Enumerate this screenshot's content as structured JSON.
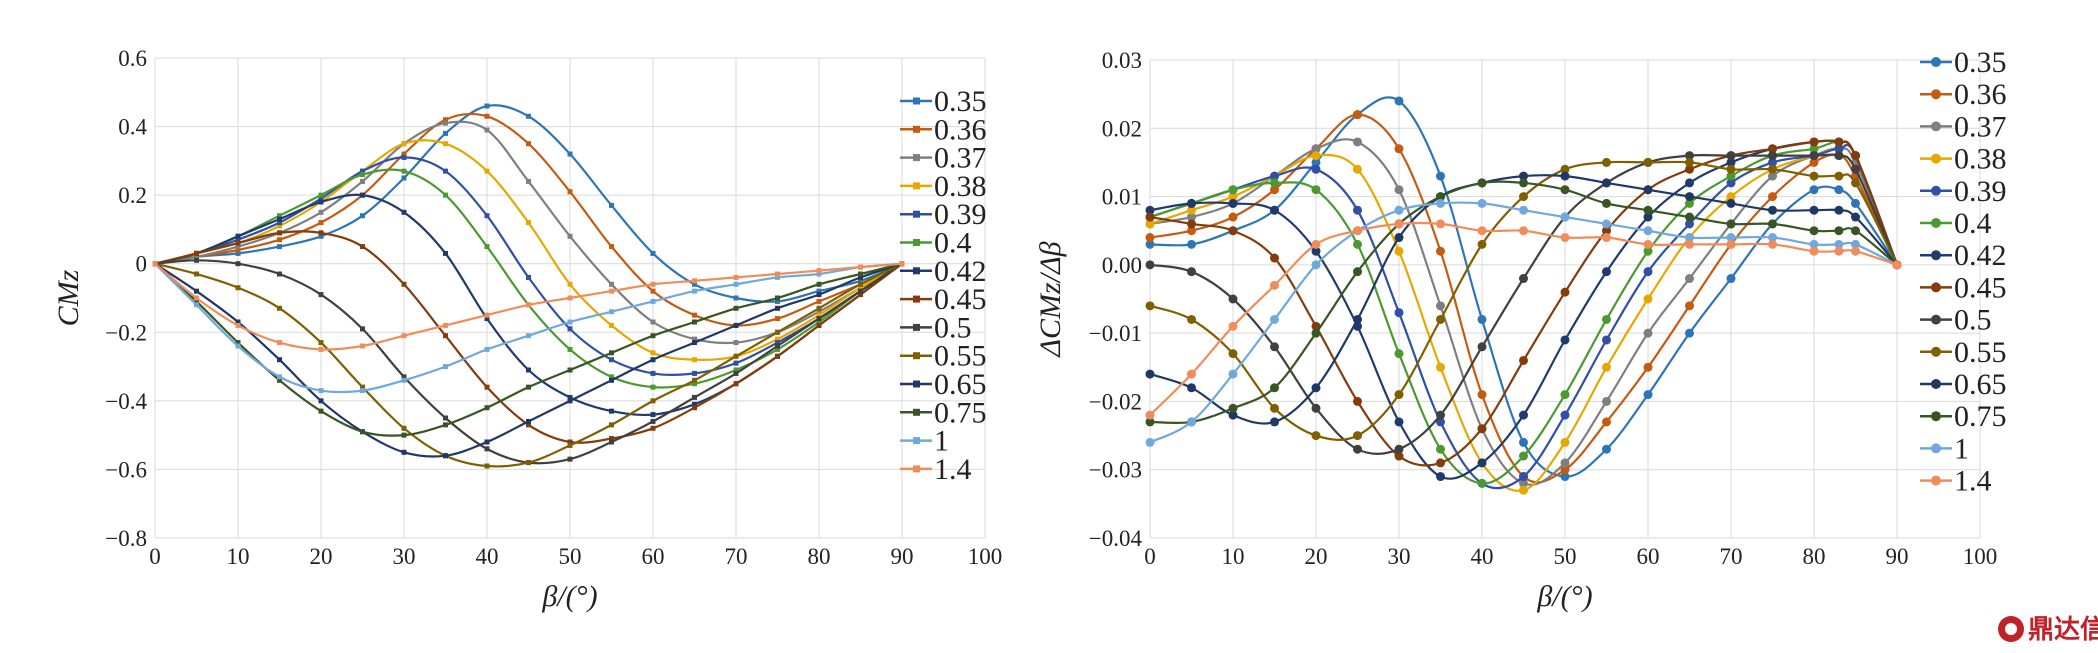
{
  "colors": [
    "#2e75b6",
    "#c55a11",
    "#7f7f7f",
    "#e6a800",
    "#2f4fa8",
    "#4a9a2f",
    "#1f3b6e",
    "#843c0c",
    "#404040",
    "#7f6000",
    "#203864",
    "#375623",
    "#6fa8dc",
    "#f08c5a"
  ],
  "watermark": "鼎达信",
  "caption": "",
  "chart_data": [
    {
      "type": "line",
      "xlabel": "β/(°)",
      "ylabel": "CMz",
      "xlim": [
        0,
        100
      ],
      "ylim": [
        -0.8,
        0.6
      ],
      "xticks": [
        0,
        10,
        20,
        30,
        40,
        50,
        60,
        70,
        80,
        90,
        100
      ],
      "yticks": [
        -0.8,
        -0.6,
        -0.4,
        -0.2,
        0,
        0.2,
        0.4,
        0.6
      ],
      "ytick_labels": [
        "−0.8",
        "−0.6",
        "−0.4",
        "−0.2",
        "0",
        "0.2",
        "0.4",
        "0.6"
      ],
      "grid": true,
      "legend_position": "right",
      "x": [
        0,
        5,
        10,
        15,
        20,
        25,
        30,
        35,
        40,
        45,
        50,
        55,
        60,
        65,
        70,
        75,
        80,
        85,
        90
      ],
      "series": [
        {
          "name": "0.35",
          "values": [
            0,
            0.02,
            0.03,
            0.05,
            0.08,
            0.14,
            0.25,
            0.38,
            0.46,
            0.43,
            0.32,
            0.17,
            0.03,
            -0.06,
            -0.1,
            -0.11,
            -0.08,
            -0.05,
            0
          ]
        },
        {
          "name": "0.36",
          "values": [
            0,
            0.02,
            0.04,
            0.07,
            0.12,
            0.2,
            0.32,
            0.42,
            0.43,
            0.35,
            0.21,
            0.05,
            -0.08,
            -0.15,
            -0.18,
            -0.16,
            -0.11,
            -0.06,
            0
          ]
        },
        {
          "name": "0.37",
          "values": [
            0,
            0.02,
            0.05,
            0.09,
            0.15,
            0.24,
            0.35,
            0.41,
            0.39,
            0.24,
            0.08,
            -0.06,
            -0.17,
            -0.22,
            -0.23,
            -0.2,
            -0.14,
            -0.07,
            0
          ]
        },
        {
          "name": "0.38",
          "values": [
            0,
            0.03,
            0.06,
            0.11,
            0.18,
            0.27,
            0.35,
            0.35,
            0.27,
            0.12,
            -0.06,
            -0.18,
            -0.26,
            -0.28,
            -0.27,
            -0.22,
            -0.15,
            -0.07,
            0
          ]
        },
        {
          "name": "0.39",
          "values": [
            0,
            0.03,
            0.07,
            0.12,
            0.19,
            0.27,
            0.31,
            0.27,
            0.14,
            -0.04,
            -0.19,
            -0.28,
            -0.32,
            -0.32,
            -0.29,
            -0.23,
            -0.16,
            -0.08,
            0
          ]
        },
        {
          "name": "0.4",
          "values": [
            0,
            0.03,
            0.08,
            0.14,
            0.2,
            0.26,
            0.27,
            0.2,
            0.05,
            -0.12,
            -0.25,
            -0.33,
            -0.36,
            -0.35,
            -0.31,
            -0.25,
            -0.17,
            -0.08,
            0
          ]
        },
        {
          "name": "0.42",
          "values": [
            0,
            0.03,
            0.08,
            0.13,
            0.18,
            0.2,
            0.15,
            0.03,
            -0.16,
            -0.31,
            -0.39,
            -0.43,
            -0.44,
            -0.41,
            -0.35,
            -0.27,
            -0.18,
            -0.09,
            0
          ]
        },
        {
          "name": "0.45",
          "values": [
            0,
            0.03,
            0.06,
            0.09,
            0.09,
            0.05,
            -0.06,
            -0.21,
            -0.36,
            -0.47,
            -0.52,
            -0.51,
            -0.48,
            -0.42,
            -0.35,
            -0.27,
            -0.18,
            -0.09,
            0
          ]
        },
        {
          "name": "0.5",
          "values": [
            0,
            0.01,
            0.0,
            -0.03,
            -0.09,
            -0.19,
            -0.33,
            -0.45,
            -0.54,
            -0.58,
            -0.57,
            -0.52,
            -0.46,
            -0.39,
            -0.32,
            -0.24,
            -0.16,
            -0.08,
            0
          ]
        },
        {
          "name": "0.55",
          "values": [
            0,
            -0.03,
            -0.07,
            -0.13,
            -0.23,
            -0.36,
            -0.48,
            -0.56,
            -0.59,
            -0.58,
            -0.53,
            -0.47,
            -0.4,
            -0.34,
            -0.27,
            -0.2,
            -0.13,
            -0.06,
            0
          ]
        },
        {
          "name": "0.65",
          "values": [
            0,
            -0.08,
            -0.17,
            -0.28,
            -0.4,
            -0.49,
            -0.55,
            -0.56,
            -0.52,
            -0.46,
            -0.4,
            -0.34,
            -0.28,
            -0.23,
            -0.18,
            -0.13,
            -0.09,
            -0.04,
            0
          ]
        },
        {
          "name": "0.75",
          "values": [
            0,
            -0.11,
            -0.23,
            -0.34,
            -0.43,
            -0.49,
            -0.5,
            -0.47,
            -0.42,
            -0.36,
            -0.31,
            -0.26,
            -0.21,
            -0.17,
            -0.13,
            -0.1,
            -0.06,
            -0.03,
            0
          ]
        },
        {
          "name": "1",
          "values": [
            0,
            -0.12,
            -0.24,
            -0.33,
            -0.37,
            -0.37,
            -0.34,
            -0.3,
            -0.25,
            -0.21,
            -0.17,
            -0.14,
            -0.11,
            -0.08,
            -0.06,
            -0.04,
            -0.03,
            -0.01,
            0
          ]
        },
        {
          "name": "1.4",
          "values": [
            0,
            -0.1,
            -0.18,
            -0.23,
            -0.25,
            -0.24,
            -0.21,
            -0.18,
            -0.15,
            -0.12,
            -0.1,
            -0.08,
            -0.06,
            -0.05,
            -0.04,
            -0.03,
            -0.02,
            -0.01,
            0
          ]
        }
      ]
    },
    {
      "type": "line",
      "xlabel": "β/(°)",
      "ylabel": "ΔCMz/Δβ",
      "xlim": [
        0,
        100
      ],
      "ylim": [
        -0.04,
        0.03
      ],
      "xticks": [
        0,
        10,
        20,
        30,
        40,
        50,
        60,
        70,
        80,
        90,
        100
      ],
      "yticks": [
        -0.04,
        -0.03,
        -0.02,
        -0.01,
        0,
        0.01,
        0.02,
        0.03
      ],
      "ytick_labels": [
        "−0.04",
        "−0.03",
        "−0.02",
        "−0.01",
        "0.00",
        "0.01",
        "0.02",
        "0.03"
      ],
      "grid": true,
      "legend_position": "right",
      "x": [
        0,
        5,
        10,
        15,
        20,
        25,
        30,
        35,
        40,
        45,
        50,
        55,
        60,
        65,
        70,
        75,
        80,
        83,
        85,
        90
      ],
      "series": [
        {
          "name": "0.35",
          "values": [
            0.003,
            0.003,
            0.005,
            0.008,
            0.015,
            0.022,
            0.024,
            0.013,
            -0.008,
            -0.026,
            -0.031,
            -0.027,
            -0.019,
            -0.01,
            -0.002,
            0.006,
            0.011,
            0.011,
            0.009,
            0
          ]
        },
        {
          "name": "0.36",
          "values": [
            0.004,
            0.005,
            0.007,
            0.011,
            0.017,
            0.022,
            0.017,
            0.002,
            -0.019,
            -0.031,
            -0.03,
            -0.023,
            -0.015,
            -0.006,
            0.003,
            0.01,
            0.015,
            0.016,
            0.013,
            0
          ]
        },
        {
          "name": "0.37",
          "values": [
            0.006,
            0.007,
            0.009,
            0.013,
            0.017,
            0.018,
            0.011,
            -0.006,
            -0.024,
            -0.032,
            -0.029,
            -0.02,
            -0.01,
            -0.002,
            0.006,
            0.013,
            0.016,
            0.017,
            0.015,
            0
          ]
        },
        {
          "name": "0.38",
          "values": [
            0.006,
            0.008,
            0.01,
            0.013,
            0.016,
            0.014,
            0.002,
            -0.015,
            -0.029,
            -0.033,
            -0.026,
            -0.015,
            -0.005,
            0.004,
            0.01,
            0.014,
            0.016,
            0.017,
            0.016,
            0
          ]
        },
        {
          "name": "0.39",
          "values": [
            0.007,
            0.009,
            0.011,
            0.013,
            0.014,
            0.008,
            -0.007,
            -0.023,
            -0.032,
            -0.031,
            -0.022,
            -0.011,
            -0.001,
            0.006,
            0.012,
            0.015,
            0.016,
            0.017,
            0.016,
            0
          ]
        },
        {
          "name": "0.4",
          "values": [
            0.007,
            0.009,
            0.011,
            0.012,
            0.011,
            0.003,
            -0.013,
            -0.027,
            -0.032,
            -0.028,
            -0.019,
            -0.008,
            0.002,
            0.009,
            0.013,
            0.016,
            0.017,
            0.018,
            0.016,
            0
          ]
        },
        {
          "name": "0.42",
          "values": [
            0.008,
            0.009,
            0.009,
            0.008,
            0.002,
            -0.009,
            -0.023,
            -0.031,
            -0.029,
            -0.022,
            -0.011,
            -0.001,
            0.007,
            0.012,
            0.015,
            0.017,
            0.018,
            0.018,
            0.016,
            0
          ]
        },
        {
          "name": "0.45",
          "values": [
            0.007,
            0.006,
            0.005,
            0.001,
            -0.009,
            -0.02,
            -0.028,
            -0.029,
            -0.024,
            -0.014,
            -0.004,
            0.005,
            0.011,
            0.014,
            0.016,
            0.017,
            0.018,
            0.018,
            0.016,
            0
          ]
        },
        {
          "name": "0.5",
          "values": [
            0,
            -0.001,
            -0.005,
            -0.012,
            -0.021,
            -0.027,
            -0.027,
            -0.022,
            -0.012,
            -0.002,
            0.007,
            0.012,
            0.015,
            0.016,
            0.016,
            0.016,
            0.016,
            0.016,
            0.014,
            0
          ]
        },
        {
          "name": "0.55",
          "values": [
            -0.006,
            -0.008,
            -0.013,
            -0.021,
            -0.025,
            -0.025,
            -0.019,
            -0.008,
            0.003,
            0.01,
            0.014,
            0.015,
            0.015,
            0.015,
            0.014,
            0.014,
            0.013,
            0.013,
            0.012,
            0
          ]
        },
        {
          "name": "0.65",
          "values": [
            -0.016,
            -0.018,
            -0.022,
            -0.023,
            -0.018,
            -0.008,
            0.004,
            0.01,
            0.012,
            0.013,
            0.013,
            0.012,
            0.011,
            0.01,
            0.009,
            0.008,
            0.008,
            0.008,
            0.007,
            0
          ]
        },
        {
          "name": "0.75",
          "values": [
            -0.023,
            -0.023,
            -0.021,
            -0.018,
            -0.01,
            -0.001,
            0.006,
            0.01,
            0.012,
            0.012,
            0.011,
            0.009,
            0.008,
            0.007,
            0.006,
            0.006,
            0.005,
            0.005,
            0.005,
            0
          ]
        },
        {
          "name": "1",
          "values": [
            -0.026,
            -0.023,
            -0.016,
            -0.008,
            0,
            0.005,
            0.008,
            0.009,
            0.009,
            0.008,
            0.007,
            0.006,
            0.005,
            0.004,
            0.004,
            0.004,
            0.003,
            0.003,
            0.003,
            0
          ]
        },
        {
          "name": "1.4",
          "values": [
            -0.022,
            -0.016,
            -0.009,
            -0.003,
            0.003,
            0.005,
            0.006,
            0.006,
            0.005,
            0.005,
            0.004,
            0.004,
            0.003,
            0.003,
            0.003,
            0.003,
            0.002,
            0.002,
            0.002,
            0
          ]
        }
      ]
    }
  ]
}
